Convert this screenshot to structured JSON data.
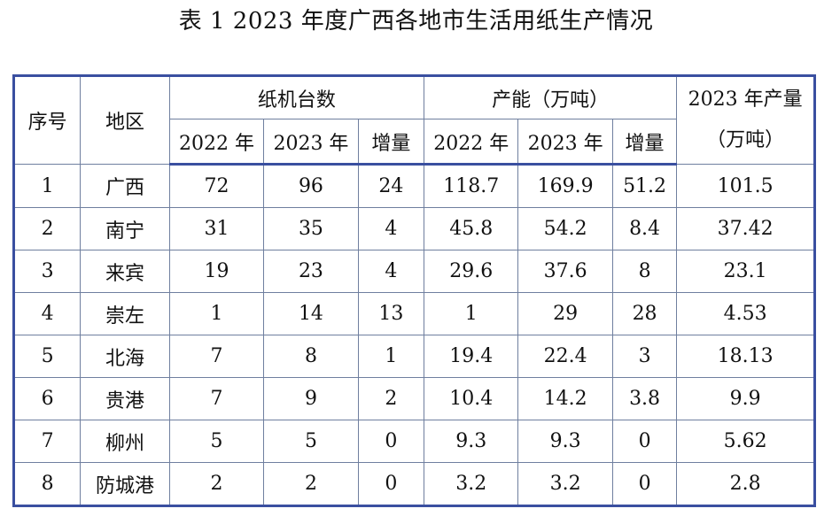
{
  "title": "表 1 2023 年度广西各地市生活用纸生产情况",
  "table": {
    "headers": {
      "no": "序号",
      "region": "地区",
      "machines": "纸机台数",
      "capacity": "产能（万吨）",
      "output_line1": "2023 年产量",
      "output_line2": "（万吨）",
      "y2022": "2022 年",
      "y2023": "2023 年",
      "inc": "增量"
    },
    "rows": [
      {
        "no": "1",
        "region": "广西",
        "m2022": "72",
        "m2023": "96",
        "minc": "24",
        "c2022": "118.7",
        "c2023": "169.9",
        "cinc": "51.2",
        "out": "101.5"
      },
      {
        "no": "2",
        "region": "南宁",
        "m2022": "31",
        "m2023": "35",
        "minc": "4",
        "c2022": "45.8",
        "c2023": "54.2",
        "cinc": "8.4",
        "out": "37.42"
      },
      {
        "no": "3",
        "region": "来宾",
        "m2022": "19",
        "m2023": "23",
        "minc": "4",
        "c2022": "29.6",
        "c2023": "37.6",
        "cinc": "8",
        "out": "23.1"
      },
      {
        "no": "4",
        "region": "崇左",
        "m2022": "1",
        "m2023": "14",
        "minc": "13",
        "c2022": "1",
        "c2023": "29",
        "cinc": "28",
        "out": "4.53"
      },
      {
        "no": "5",
        "region": "北海",
        "m2022": "7",
        "m2023": "8",
        "minc": "1",
        "c2022": "19.4",
        "c2023": "22.4",
        "cinc": "3",
        "out": "18.13"
      },
      {
        "no": "6",
        "region": "贵港",
        "m2022": "7",
        "m2023": "9",
        "minc": "2",
        "c2022": "10.4",
        "c2023": "14.2",
        "cinc": "3.8",
        "out": "9.9"
      },
      {
        "no": "7",
        "region": "柳州",
        "m2022": "5",
        "m2023": "5",
        "minc": "0",
        "c2022": "9.3",
        "c2023": "9.3",
        "cinc": "0",
        "out": "5.62"
      },
      {
        "no": "8",
        "region": "防城港",
        "m2022": "2",
        "m2023": "2",
        "minc": "0",
        "c2022": "3.2",
        "c2023": "3.2",
        "cinc": "0",
        "out": "2.8"
      }
    ]
  }
}
